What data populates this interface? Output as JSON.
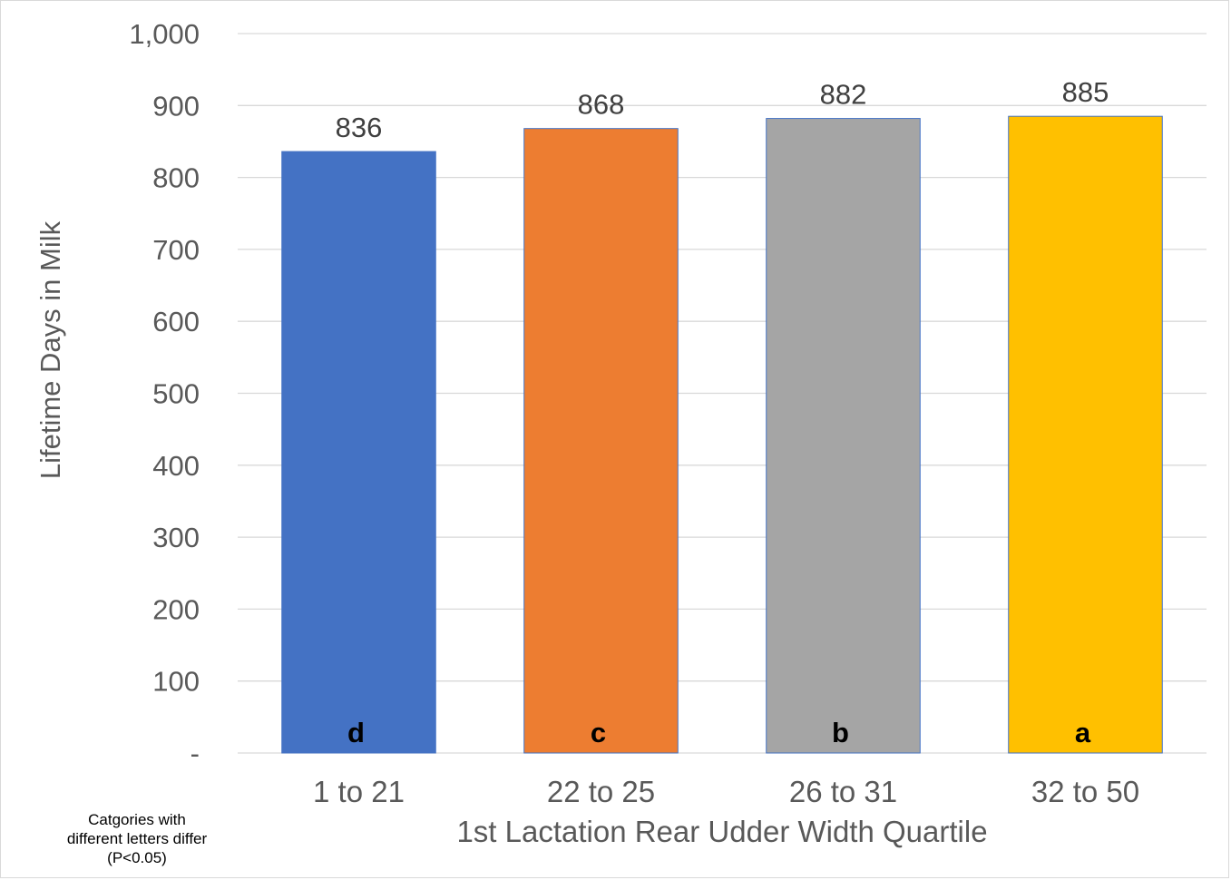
{
  "chart_data": {
    "type": "bar",
    "title": "",
    "xlabel": "1st Lactation Rear Udder Width Quartile",
    "ylabel": "Lifetime Days in Milk",
    "categories": [
      "1 to 21",
      "22 to 25",
      "26 to 31",
      "32 to 50"
    ],
    "values": [
      836,
      868,
      882,
      885
    ],
    "data_labels": [
      "836",
      "868",
      "882",
      "885"
    ],
    "significance_letters": [
      "d",
      "c",
      "b",
      "a"
    ],
    "colors": [
      "#4472c4",
      "#ed7d31",
      "#a5a5a5",
      "#ffc000"
    ],
    "ylim": [
      0,
      1000
    ],
    "yticks": [
      0,
      100,
      200,
      300,
      400,
      500,
      600,
      700,
      800,
      900,
      1000
    ],
    "ytick_labels": [
      "-",
      "100",
      "200",
      "300",
      "400",
      "500",
      "600",
      "700",
      "800",
      "900",
      "1,000"
    ],
    "grid": true,
    "legend": "none"
  },
  "footnote": {
    "line1": "Catgories with",
    "line2": "different letters differ",
    "line3": "(P<0.05)"
  }
}
